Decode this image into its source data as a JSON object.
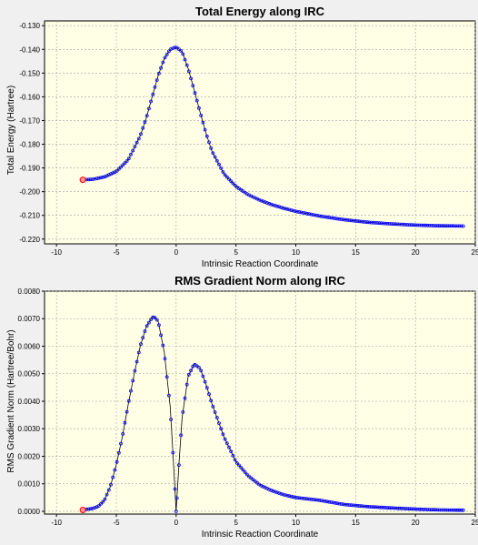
{
  "chart_data": [
    {
      "type": "line",
      "title": "Total Energy along IRC",
      "xlabel": "Intrinsic Reaction Coordinate",
      "ylabel": "Total Energy (Hartree)",
      "xlim": [
        -11,
        25
      ],
      "ylim": [
        -0.222,
        -0.128
      ],
      "xticks": [
        -10,
        -5,
        0,
        5,
        10,
        15,
        20,
        25
      ],
      "yticks": [
        -0.13,
        -0.14,
        -0.15,
        -0.16,
        -0.17,
        -0.18,
        -0.19,
        -0.2,
        -0.21,
        -0.22
      ],
      "xtick_labels": [
        "-10",
        "-5",
        "0",
        "5",
        "10",
        "15",
        "20",
        "25"
      ],
      "ytick_labels": [
        "-0.130",
        "-0.140",
        "-0.150",
        "-0.160",
        "-0.170",
        "-0.180",
        "-0.190",
        "-0.200",
        "-0.210",
        "-0.220"
      ],
      "grid": true,
      "series": [
        {
          "color": "#0000ff",
          "marker": "circle",
          "highlight_color": "#ff0000",
          "x": [
            -7.8,
            -7.0,
            -6.0,
            -5.0,
            -4.0,
            -3.0,
            -2.5,
            -2.0,
            -1.5,
            -1.0,
            -0.5,
            0.0,
            0.5,
            1.0,
            1.5,
            2.0,
            2.5,
            3.0,
            4.0,
            5.0,
            6.0,
            7.0,
            8.0,
            9.0,
            10.0,
            12.0,
            14.0,
            16.0,
            18.0,
            20.0,
            22.0,
            24.0
          ],
          "y": [
            -0.195,
            -0.1948,
            -0.1938,
            -0.1915,
            -0.1865,
            -0.1765,
            -0.169,
            -0.16,
            -0.151,
            -0.144,
            -0.14,
            -0.139,
            -0.141,
            -0.148,
            -0.157,
            -0.1665,
            -0.1755,
            -0.183,
            -0.1925,
            -0.1978,
            -0.2012,
            -0.2036,
            -0.2055,
            -0.207,
            -0.2083,
            -0.2103,
            -0.2118,
            -0.2129,
            -0.2136,
            -0.2141,
            -0.2144,
            -0.2145
          ]
        }
      ]
    },
    {
      "type": "line",
      "title": "RMS Gradient Norm along IRC",
      "xlabel": "Intrinsic Reaction Coordinate",
      "ylabel": "RMS Gradient Norm (Hartree/Bohr)",
      "xlim": [
        -11,
        25
      ],
      "ylim": [
        -0.0001,
        0.008
      ],
      "xticks": [
        -10,
        -5,
        0,
        5,
        10,
        15,
        20,
        25
      ],
      "yticks": [
        0.0,
        0.001,
        0.002,
        0.003,
        0.004,
        0.005,
        0.006,
        0.007,
        0.008
      ],
      "xtick_labels": [
        "-10",
        "-5",
        "0",
        "5",
        "10",
        "15",
        "20",
        "25"
      ],
      "ytick_labels": [
        "0.0000",
        "0.0010",
        "0.0020",
        "0.0030",
        "0.0040",
        "0.0050",
        "0.0060",
        "0.0070",
        "0.0080"
      ],
      "grid": true,
      "series": [
        {
          "color": "#0000ff",
          "marker": "circle",
          "highlight_color": "#ff0000",
          "x": [
            -7.8,
            -7.0,
            -6.5,
            -6.0,
            -5.5,
            -5.0,
            -4.5,
            -4.0,
            -3.5,
            -3.0,
            -2.5,
            -2.0,
            -1.8,
            -1.5,
            -1.0,
            -0.5,
            -0.25,
            0.0,
            0.25,
            0.5,
            1.0,
            1.5,
            2.0,
            2.5,
            3.0,
            4.0,
            5.0,
            6.0,
            7.0,
            8.0,
            9.0,
            10.0,
            12.0,
            14.0,
            16.0,
            18.0,
            20.0,
            22.0,
            24.0
          ],
          "y": [
            5e-05,
            0.0001,
            0.00018,
            0.0004,
            0.0009,
            0.0017,
            0.0027,
            0.0039,
            0.005,
            0.006,
            0.0067,
            0.00705,
            0.00705,
            0.0069,
            0.0058,
            0.0038,
            0.002,
            0.0,
            0.0018,
            0.0034,
            0.0049,
            0.00535,
            0.0052,
            0.0046,
            0.0039,
            0.0027,
            0.0018,
            0.0013,
            0.00095,
            0.00075,
            0.0006,
            0.0005,
            0.0004,
            0.00025,
            0.00017,
            0.00012,
            8e-05,
            5e-05,
            4e-05
          ]
        }
      ]
    }
  ]
}
